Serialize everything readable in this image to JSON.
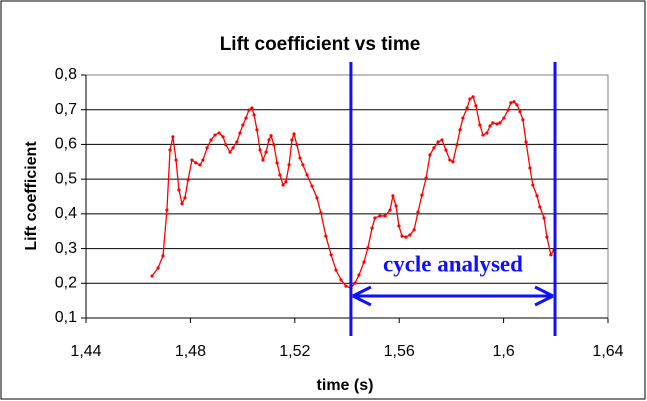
{
  "chart_data": {
    "type": "line",
    "title": "Lift coefficient vs time",
    "x_label": "time (s)",
    "y_label": "Lift coefficient",
    "x": [
      1.4653,
      1.4676,
      1.4695,
      1.471,
      1.4722,
      1.4733,
      1.4745,
      1.4756,
      1.4768,
      1.4779,
      1.4791,
      1.4806,
      1.4821,
      1.4837,
      1.4848,
      1.4864,
      1.4879,
      1.4894,
      1.491,
      1.4925,
      1.4936,
      1.4952,
      1.4963,
      1.4978,
      1.499,
      1.5001,
      1.5013,
      1.5024,
      1.5036,
      1.5044,
      1.5055,
      1.5067,
      1.5078,
      1.509,
      1.5101,
      1.5109,
      1.512,
      1.5132,
      1.5143,
      1.5155,
      1.5166,
      1.5178,
      1.5189,
      1.5197,
      1.5208,
      1.522,
      1.5231,
      1.5247,
      1.5266,
      1.5285,
      1.53,
      1.5319,
      1.5339,
      1.5358,
      1.5377,
      1.5396,
      1.5415,
      1.5431,
      1.5446,
      1.5465,
      1.548,
      1.5496,
      1.5507,
      1.5526,
      1.5546,
      1.5565,
      1.5576,
      1.5588,
      1.5599,
      1.5611,
      1.5626,
      1.5641,
      1.5657,
      1.5672,
      1.5687,
      1.5703,
      1.5718,
      1.5733,
      1.5749,
      1.5764,
      1.5779,
      1.5794,
      1.5806,
      1.5821,
      1.5833,
      1.5844,
      1.586,
      1.5871,
      1.5883,
      1.5894,
      1.5909,
      1.5921,
      1.5936,
      1.5948,
      1.5959,
      1.5975,
      1.5986,
      1.6001,
      1.6017,
      1.6028,
      1.604,
      1.6051,
      1.6063,
      1.6074,
      1.6086,
      1.6101,
      1.6112,
      1.6128,
      1.6139,
      1.6155,
      1.6166,
      1.6181,
      1.6193
    ],
    "series": [
      {
        "name": "Lift coefficient",
        "color": "#ff0000",
        "values": [
          0.221,
          0.244,
          0.279,
          0.411,
          0.584,
          0.622,
          0.555,
          0.469,
          0.429,
          0.446,
          0.498,
          0.555,
          0.547,
          0.541,
          0.555,
          0.59,
          0.613,
          0.627,
          0.633,
          0.622,
          0.599,
          0.578,
          0.59,
          0.607,
          0.633,
          0.656,
          0.676,
          0.699,
          0.705,
          0.685,
          0.642,
          0.584,
          0.555,
          0.578,
          0.613,
          0.625,
          0.599,
          0.547,
          0.512,
          0.483,
          0.492,
          0.541,
          0.613,
          0.63,
          0.599,
          0.561,
          0.541,
          0.512,
          0.48,
          0.446,
          0.403,
          0.336,
          0.282,
          0.238,
          0.21,
          0.192,
          0.186,
          0.201,
          0.224,
          0.261,
          0.302,
          0.359,
          0.388,
          0.394,
          0.394,
          0.411,
          0.452,
          0.423,
          0.365,
          0.336,
          0.333,
          0.339,
          0.354,
          0.405,
          0.454,
          0.503,
          0.57,
          0.59,
          0.607,
          0.613,
          0.584,
          0.555,
          0.55,
          0.599,
          0.642,
          0.676,
          0.705,
          0.731,
          0.737,
          0.711,
          0.656,
          0.627,
          0.633,
          0.653,
          0.662,
          0.659,
          0.662,
          0.676,
          0.699,
          0.72,
          0.723,
          0.714,
          0.694,
          0.671,
          0.607,
          0.532,
          0.483,
          0.452,
          0.42,
          0.388,
          0.333,
          0.282,
          0.296
        ]
      }
    ],
    "xlim": [
      1.44,
      1.64
    ],
    "xticks": [
      {
        "value": 1.44,
        "label": "1,44"
      },
      {
        "value": 1.48,
        "label": "1,48"
      },
      {
        "value": 1.52,
        "label": "1,52"
      },
      {
        "value": 1.56,
        "label": "1,56"
      },
      {
        "value": 1.6,
        "label": "1,6"
      },
      {
        "value": 1.64,
        "label": "1,64"
      }
    ],
    "ylim": [
      0.1,
      0.8
    ],
    "yticks": [
      {
        "value": 0.1,
        "label": "0,1"
      },
      {
        "value": 0.2,
        "label": "0,2"
      },
      {
        "value": 0.3,
        "label": "0,3"
      },
      {
        "value": 0.4,
        "label": "0,4"
      },
      {
        "value": 0.5,
        "label": "0,5"
      },
      {
        "value": 0.6,
        "label": "0,6"
      },
      {
        "value": 0.7,
        "label": "0,7"
      },
      {
        "value": 0.8,
        "label": "0,8"
      }
    ],
    "grid": true,
    "annotation": {
      "text": "cycle analysed",
      "color": "#1010ff",
      "x_bounds": [
        1.5415,
        1.6197
      ]
    }
  }
}
